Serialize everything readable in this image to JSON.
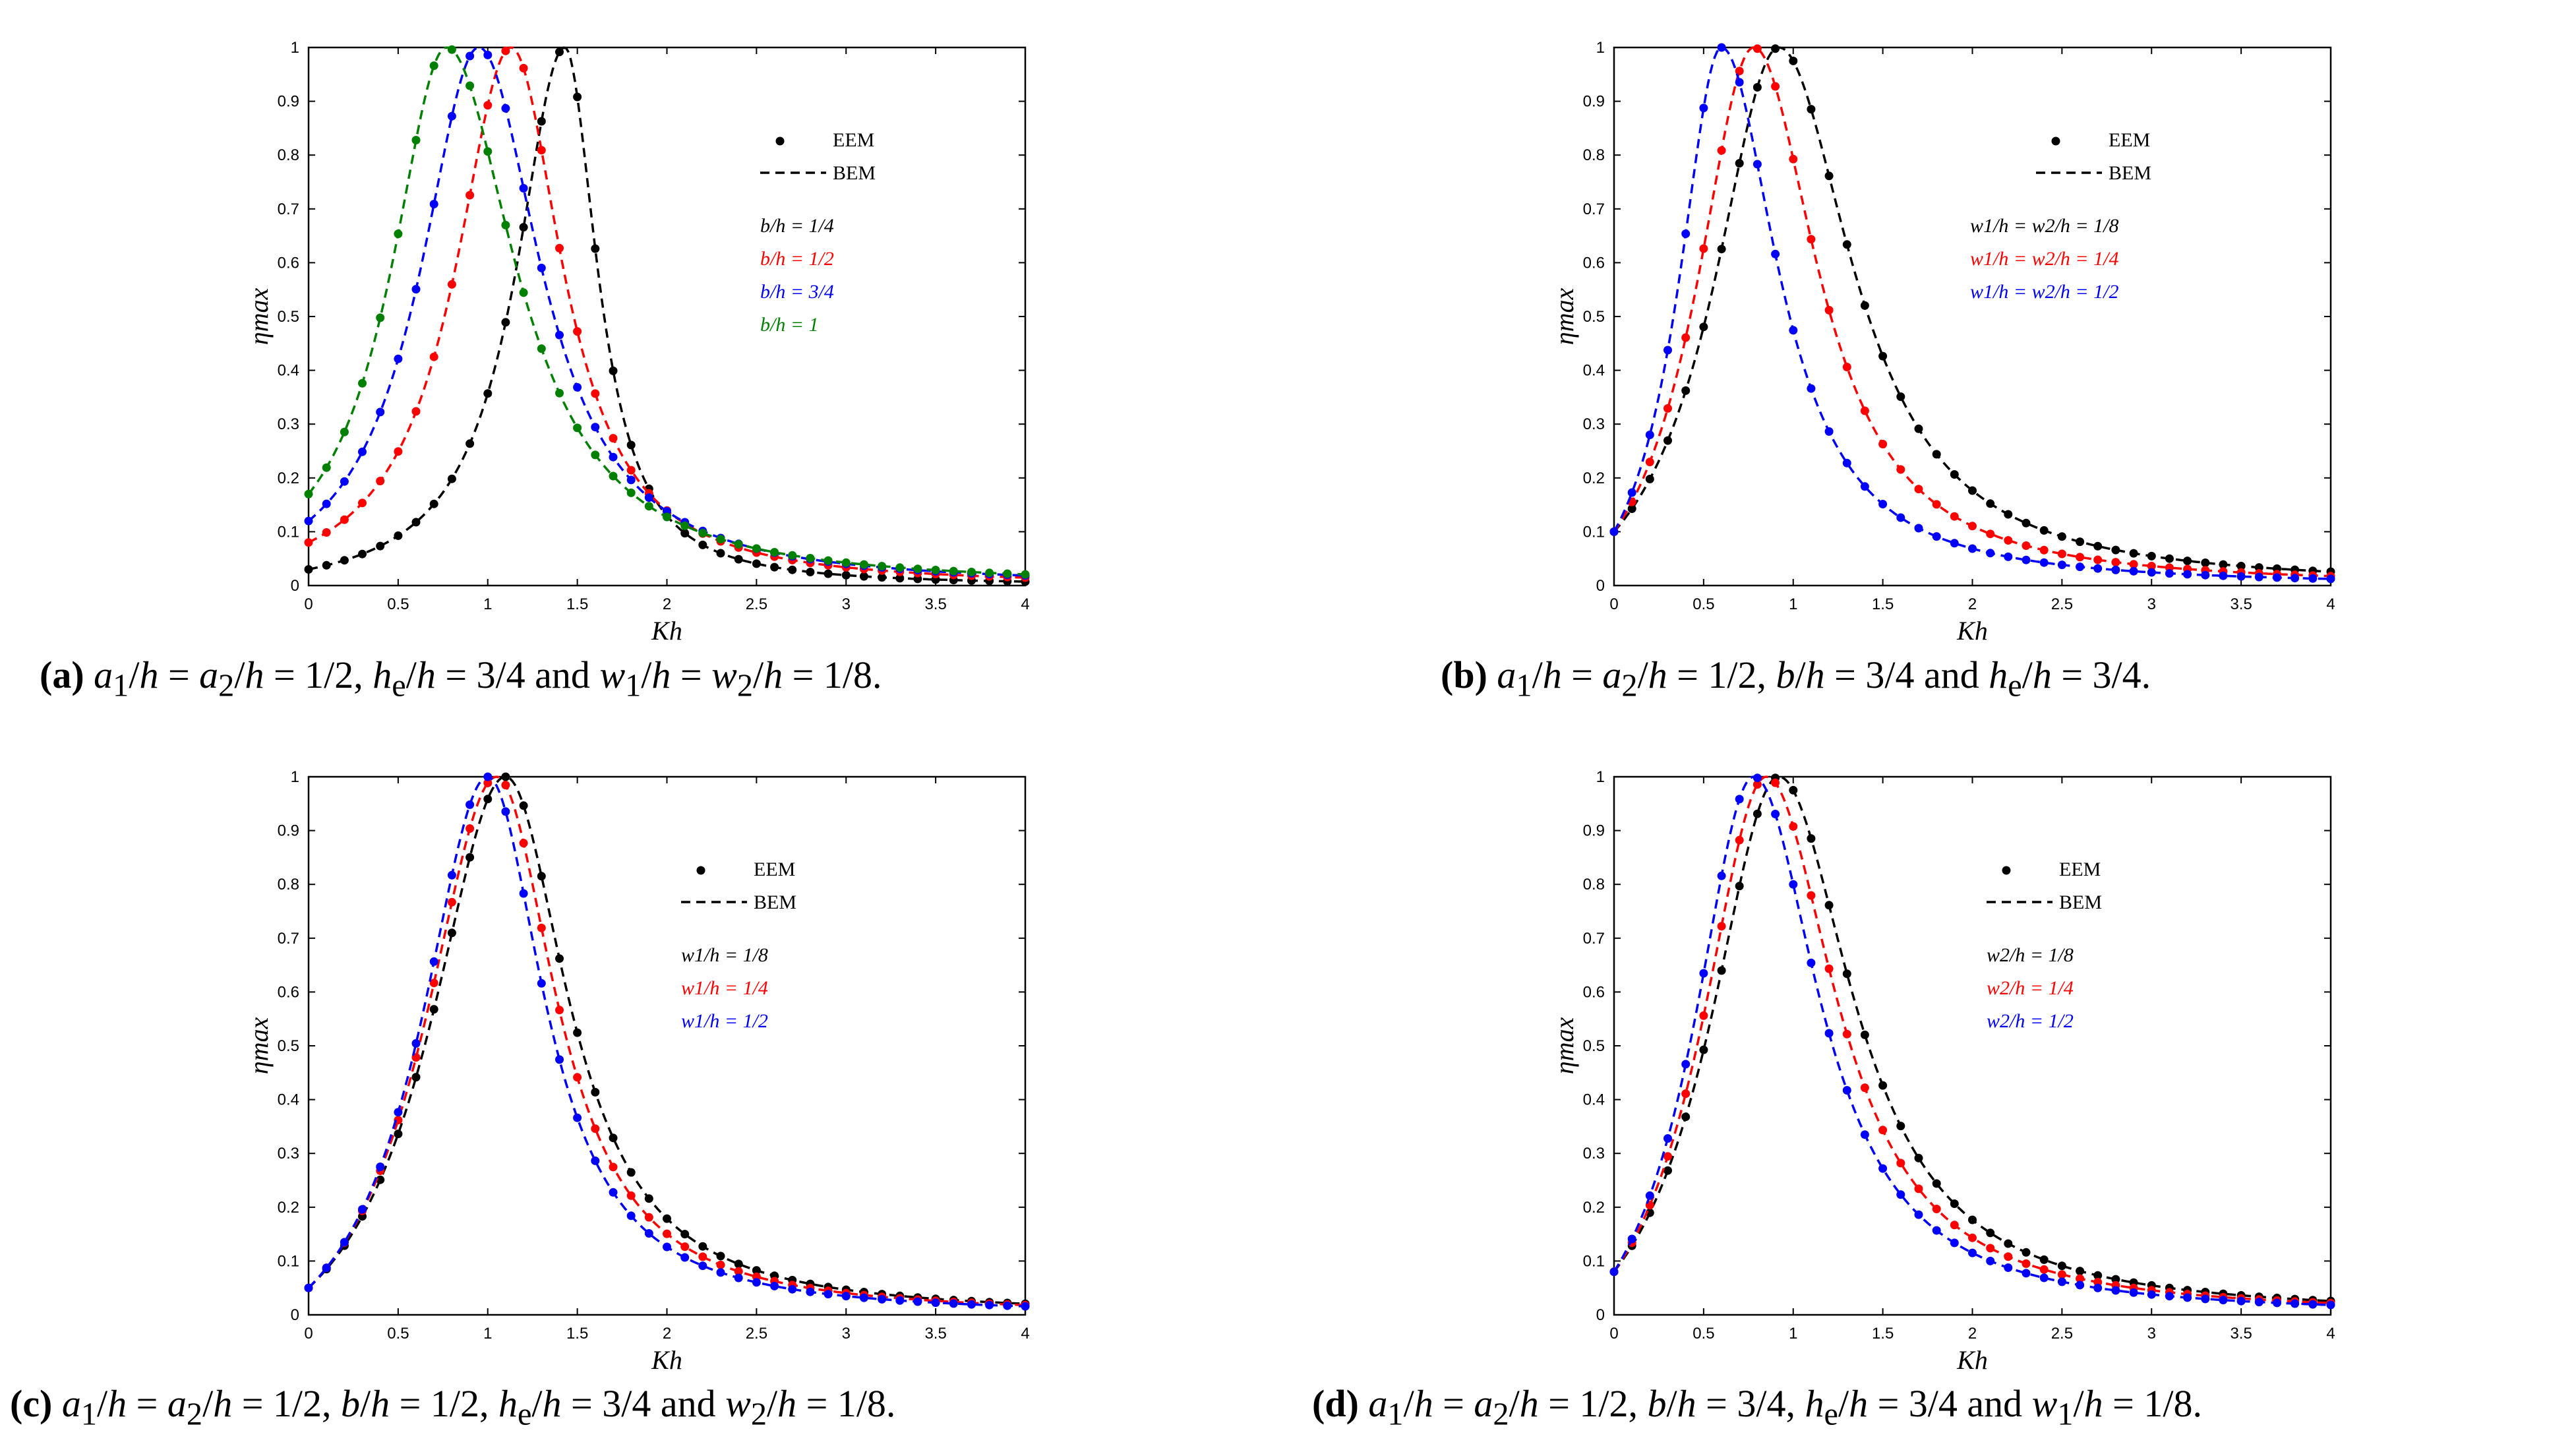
{
  "chart_data": [
    {
      "type": "line",
      "panel_label": "a",
      "caption_text": "a1/h = a2/h = 1/2, he/h = 3/4 and w1/h = w2/h = 1/8.",
      "xlabel": "Kh",
      "ylabel": "ηmax",
      "xlim": [
        0,
        4
      ],
      "ylim": [
        0,
        1
      ],
      "xticks": [
        "0",
        "0.5",
        "1",
        "1.5",
        "2",
        "2.5",
        "3",
        "3.5",
        "4"
      ],
      "yticks": [
        "0",
        "0.1",
        "0.2",
        "0.3",
        "0.4",
        "0.5",
        "0.6",
        "0.7",
        "0.8",
        "0.9",
        "1"
      ],
      "legend_methods": [
        "EEM",
        "BEM"
      ],
      "series": [
        {
          "name": "b/h = 1/4",
          "color": "#000000",
          "peak_x": 1.43,
          "peak_y": 1.0,
          "start_y": 0.03,
          "end_y": 0.008,
          "left_width": 0.33,
          "right_width": 0.22
        },
        {
          "name": "b/h = 1/2",
          "color": "#ff0000",
          "peak_x": 1.13,
          "peak_y": 1.0,
          "start_y": 0.08,
          "end_y": 0.012,
          "left_width": 0.38,
          "right_width": 0.35
        },
        {
          "name": "b/h = 3/4",
          "color": "#0000ff",
          "peak_x": 0.95,
          "peak_y": 1.0,
          "start_y": 0.12,
          "end_y": 0.014,
          "left_width": 0.4,
          "right_width": 0.42
        },
        {
          "name": "b/h = 1",
          "color": "#008000",
          "peak_x": 0.77,
          "peak_y": 1.0,
          "start_y": 0.17,
          "end_y": 0.015,
          "left_width": 0.38,
          "right_width": 0.47
        }
      ]
    },
    {
      "type": "line",
      "panel_label": "b",
      "caption_text": "a1/h = a2/h = 1/2, b/h = 3/4 and he/h = 3/4.",
      "xlabel": "Kh",
      "ylabel": "ηmax",
      "xlim": [
        0,
        4
      ],
      "ylim": [
        0,
        1
      ],
      "xticks": [
        "0",
        "0.5",
        "1",
        "1.5",
        "2",
        "2.5",
        "3",
        "3.5",
        "4"
      ],
      "yticks": [
        "0",
        "0.1",
        "0.2",
        "0.3",
        "0.4",
        "0.5",
        "0.6",
        "0.7",
        "0.8",
        "0.9",
        "1"
      ],
      "legend_methods": [
        "EEM",
        "BEM"
      ],
      "series": [
        {
          "name": "w1/h = w2/h = 1/8",
          "color": "#000000",
          "peak_x": 0.92,
          "peak_y": 1.0,
          "start_y": 0.1,
          "end_y": 0.012,
          "left_width": 0.45,
          "right_width": 0.5
        },
        {
          "name": "w1/h = w2/h = 1/4",
          "color": "#ff0000",
          "peak_x": 0.78,
          "peak_y": 1.0,
          "start_y": 0.1,
          "end_y": 0.011,
          "left_width": 0.4,
          "right_width": 0.43
        },
        {
          "name": "w1/h = w2/h = 1/2",
          "color": "#0000ff",
          "peak_x": 0.6,
          "peak_y": 1.0,
          "start_y": 0.1,
          "end_y": 0.009,
          "left_width": 0.3,
          "right_width": 0.38
        }
      ]
    },
    {
      "type": "line",
      "panel_label": "c",
      "caption_text": "a1/h = a2/h = 1/2, b/h = 1/2, he/h = 3/4 and w2/h = 1/8.",
      "xlabel": "Kh",
      "ylabel": "ηmax",
      "xlim": [
        0,
        4
      ],
      "ylim": [
        0,
        1
      ],
      "xticks": [
        "0",
        "0.5",
        "1",
        "1.5",
        "2",
        "2.5",
        "3",
        "3.5",
        "4"
      ],
      "yticks": [
        "0",
        "0.1",
        "0.2",
        "0.3",
        "0.4",
        "0.5",
        "0.6",
        "0.7",
        "0.8",
        "0.9",
        "1"
      ],
      "legend_methods": [
        "EEM",
        "BEM"
      ],
      "series": [
        {
          "name": "w1/h = 1/8",
          "color": "#000000",
          "peak_x": 1.1,
          "peak_y": 1.0,
          "start_y": 0.05,
          "end_y": 0.012,
          "left_width": 0.52,
          "right_width": 0.42
        },
        {
          "name": "w1/h = 1/4",
          "color": "#ff0000",
          "peak_x": 1.05,
          "peak_y": 1.0,
          "start_y": 0.05,
          "end_y": 0.011,
          "left_width": 0.5,
          "right_width": 0.4
        },
        {
          "name": "w1/h = 1/2",
          "color": "#0000ff",
          "peak_x": 1.0,
          "peak_y": 1.0,
          "start_y": 0.05,
          "end_y": 0.011,
          "left_width": 0.46,
          "right_width": 0.38
        }
      ]
    },
    {
      "type": "line",
      "panel_label": "d",
      "caption_text": "a1/h = a2/h = 1/2, b/h = 3/4, he/h = 3/4 and w1/h = 1/8.",
      "xlabel": "Kh",
      "ylabel": "ηmax",
      "xlim": [
        0,
        4
      ],
      "ylim": [
        0,
        1
      ],
      "xticks": [
        "0",
        "0.5",
        "1",
        "1.5",
        "2",
        "2.5",
        "3",
        "3.5",
        "4"
      ],
      "yticks": [
        "0",
        "0.1",
        "0.2",
        "0.3",
        "0.4",
        "0.5",
        "0.6",
        "0.7",
        "0.8",
        "0.9",
        "1"
      ],
      "legend_methods": [
        "EEM",
        "BEM"
      ],
      "series": [
        {
          "name": "w2/h = 1/8",
          "color": "#000000",
          "peak_x": 0.92,
          "peak_y": 1.0,
          "start_y": 0.08,
          "end_y": 0.012,
          "left_width": 0.48,
          "right_width": 0.5
        },
        {
          "name": "w2/h = 1/4",
          "color": "#ff0000",
          "peak_x": 0.85,
          "peak_y": 1.0,
          "start_y": 0.08,
          "end_y": 0.011,
          "left_width": 0.45,
          "right_width": 0.47
        },
        {
          "name": "w2/h = 1/2",
          "color": "#0000ff",
          "peak_x": 0.78,
          "peak_y": 1.0,
          "start_y": 0.08,
          "end_y": 0.01,
          "left_width": 0.42,
          "right_width": 0.44
        }
      ]
    }
  ]
}
